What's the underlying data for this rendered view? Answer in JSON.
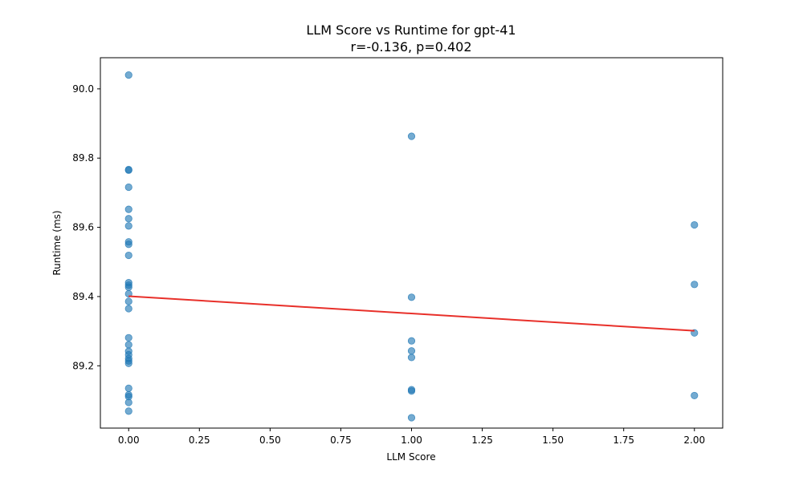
{
  "chart_data": {
    "type": "scatter",
    "title": "LLM Score vs Runtime for gpt-41",
    "subtitle": "r=-0.136, p=0.402",
    "xlabel": "LLM Score",
    "ylabel": "Runtime (ms)",
    "xlim": [
      -0.1,
      2.1
    ],
    "ylim": [
      89.02,
      90.09
    ],
    "xticks": [
      0.0,
      0.25,
      0.5,
      0.75,
      1.0,
      1.25,
      1.5,
      1.75,
      2.0
    ],
    "xtick_labels": [
      "0.00",
      "0.25",
      "0.50",
      "0.75",
      "1.00",
      "1.25",
      "1.50",
      "1.75",
      "2.00"
    ],
    "yticks": [
      89.2,
      89.4,
      89.6,
      89.8,
      90.0
    ],
    "ytick_labels": [
      "89.2",
      "89.4",
      "89.6",
      "89.8",
      "90.0"
    ],
    "grid": false,
    "point_color": "#1f77b4",
    "line_color": "#e8302a",
    "points": [
      {
        "x": 0,
        "y": 90.04
      },
      {
        "x": 0,
        "y": 89.767
      },
      {
        "x": 0,
        "y": 89.765
      },
      {
        "x": 0,
        "y": 89.716
      },
      {
        "x": 0,
        "y": 89.652
      },
      {
        "x": 0,
        "y": 89.625
      },
      {
        "x": 0,
        "y": 89.604
      },
      {
        "x": 0,
        "y": 89.558
      },
      {
        "x": 0,
        "y": 89.551
      },
      {
        "x": 0,
        "y": 89.519
      },
      {
        "x": 0,
        "y": 89.44
      },
      {
        "x": 0,
        "y": 89.433
      },
      {
        "x": 0,
        "y": 89.427
      },
      {
        "x": 0,
        "y": 89.408
      },
      {
        "x": 0,
        "y": 89.386
      },
      {
        "x": 0,
        "y": 89.365
      },
      {
        "x": 0,
        "y": 89.281
      },
      {
        "x": 0,
        "y": 89.261
      },
      {
        "x": 0,
        "y": 89.242
      },
      {
        "x": 0,
        "y": 89.232
      },
      {
        "x": 0,
        "y": 89.221
      },
      {
        "x": 0,
        "y": 89.214
      },
      {
        "x": 0,
        "y": 89.207
      },
      {
        "x": 0,
        "y": 89.135
      },
      {
        "x": 0,
        "y": 89.116
      },
      {
        "x": 0,
        "y": 89.111
      },
      {
        "x": 0,
        "y": 89.094
      },
      {
        "x": 0,
        "y": 89.069
      },
      {
        "x": 1,
        "y": 89.863
      },
      {
        "x": 1,
        "y": 89.398
      },
      {
        "x": 1,
        "y": 89.272
      },
      {
        "x": 1,
        "y": 89.243
      },
      {
        "x": 1,
        "y": 89.224
      },
      {
        "x": 1,
        "y": 89.131
      },
      {
        "x": 1,
        "y": 89.127
      },
      {
        "x": 1,
        "y": 89.05
      },
      {
        "x": 2,
        "y": 89.607
      },
      {
        "x": 2,
        "y": 89.435
      },
      {
        "x": 2,
        "y": 89.295
      },
      {
        "x": 2,
        "y": 89.114
      }
    ],
    "trendline": {
      "x": [
        0,
        2
      ],
      "y": [
        89.401,
        89.301
      ]
    }
  }
}
